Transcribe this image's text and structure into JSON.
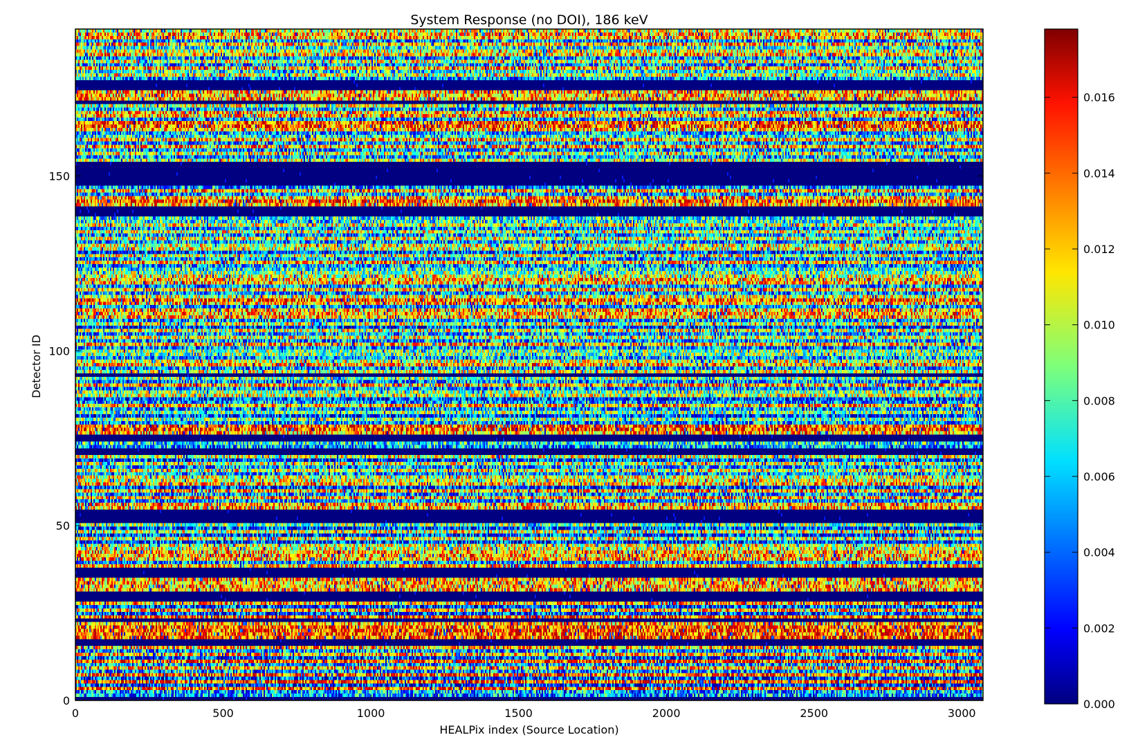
{
  "chart_data": {
    "type": "heatmap",
    "title": "System Response (no DOI), 186 keV",
    "xlabel": "HEALPix index (Source Location)",
    "ylabel": "Detector ID",
    "xlim": [
      0,
      3072
    ],
    "ylim": [
      0,
      192
    ],
    "x_ticks": [
      0,
      500,
      1000,
      1500,
      2000,
      2500,
      3000
    ],
    "y_ticks": [
      0,
      50,
      100,
      150
    ],
    "colorscale": "jet",
    "colorbar": {
      "range": [
        0.0,
        0.0178
      ],
      "ticks": [
        "0.000",
        "0.002",
        "0.004",
        "0.006",
        "0.008",
        "0.010",
        "0.012",
        "0.014",
        "0.016"
      ]
    },
    "row_levels": [
      0,
      0.3,
      0.3,
      0.8,
      0.2,
      0.8,
      0.2,
      0.8,
      0.3,
      0.7,
      0.3,
      0.8,
      0.2,
      0.7,
      0.3,
      0.7,
      0,
      0,
      0.8,
      0.8,
      0.8,
      0.8,
      0.7,
      0,
      0.8,
      0.2,
      0.7,
      0.2,
      0.7,
      0,
      0,
      0,
      0.7,
      0.7,
      0.7,
      0.7,
      0,
      0,
      0,
      0.7,
      0.3,
      0.7,
      0.7,
      0.7,
      0.6,
      0.6,
      0.2,
      0.6,
      0.2,
      0.6,
      0.2,
      0.5,
      0,
      0,
      0,
      0,
      0.7,
      0.7,
      0.3,
      0.7,
      0.3,
      0.7,
      0.2,
      0.7,
      0.6,
      0.6,
      0.3,
      0.6,
      0.3,
      0.6,
      0.2,
      0.6,
      0,
      0,
      0.3,
      0.4,
      0,
      0,
      0.7,
      0.8,
      0.8,
      0.3,
      0.5,
      0.2,
      0.5,
      0.3,
      0.7,
      0.3,
      0.2,
      0.6,
      0.5,
      0.3,
      0.7,
      0.3,
      0.5,
      0,
      0.6,
      0.3,
      0.7,
      0.6,
      0.3,
      0.5,
      0.5,
      0.3,
      0.7,
      0.3,
      0.6,
      0.3,
      0.6,
      0.2,
      0.6,
      0.3,
      0.7,
      0.7,
      0.7,
      0.3,
      0.7,
      0.8,
      0.6,
      0.3,
      0.7,
      0.3,
      0.7,
      0.7,
      0.6,
      0.5,
      0.4,
      0.3,
      0.7,
      0.3,
      0.6,
      0.2,
      0.6,
      0.6,
      0.3,
      0.6,
      0.3,
      0.6,
      0.3,
      0.6,
      0.4,
      0.4,
      0,
      0,
      0,
      0.7,
      0.8,
      0.7,
      0.3,
      0.7,
      0.3,
      0,
      0,
      0,
      0,
      0,
      0,
      0,
      0.6,
      0.3,
      0.6,
      0.3,
      0.7,
      0.3,
      0.7,
      0.4,
      0.3,
      0.7,
      0.8,
      0.8,
      0.3,
      0.7,
      0.7,
      0.3,
      0.6,
      0,
      0.7,
      0.7,
      0.7,
      0,
      0,
      0,
      0.3,
      0.6,
      0.4,
      0.7,
      0.3,
      0.6,
      0.3,
      0.7,
      0.6,
      0.4,
      0.7,
      0.3,
      0.7,
      0.7,
      0.6
    ]
  }
}
